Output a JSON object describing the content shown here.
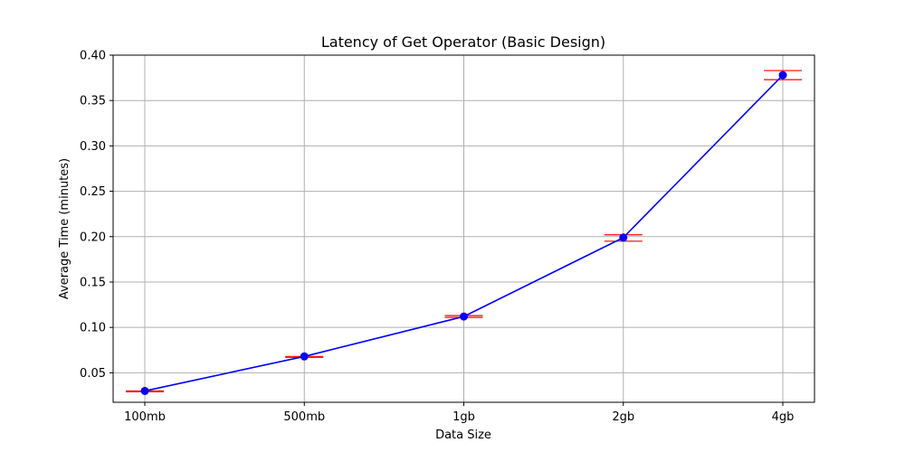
{
  "chart_data": {
    "type": "line",
    "title": "Latency of Get Operator (Basic Design)",
    "xlabel": "Data Size",
    "ylabel": "Average Time (minutes)",
    "categories": [
      "100mb",
      "500mb",
      "1gb",
      "2gb",
      "4gb"
    ],
    "series": [
      {
        "values": [
          0.03,
          0.068,
          0.112,
          0.199,
          0.378
        ],
        "error_low": [
          0.029,
          0.067,
          0.111,
          0.195,
          0.373
        ],
        "error_high": [
          0.03,
          0.068,
          0.113,
          0.202,
          0.383
        ]
      }
    ],
    "ylim": [
      0.0175,
      0.4
    ],
    "yticks": [
      0.05,
      0.1,
      0.15,
      0.2,
      0.25,
      0.3,
      0.35,
      0.4
    ],
    "ytick_labels": [
      "0.05",
      "0.10",
      "0.15",
      "0.20",
      "0.25",
      "0.30",
      "0.35",
      "0.40"
    ],
    "grid": true,
    "colors": {
      "line": "#0000ff",
      "marker": "#0000ff",
      "error_bar": "#ff0000",
      "grid": "#b0b0b0"
    }
  }
}
